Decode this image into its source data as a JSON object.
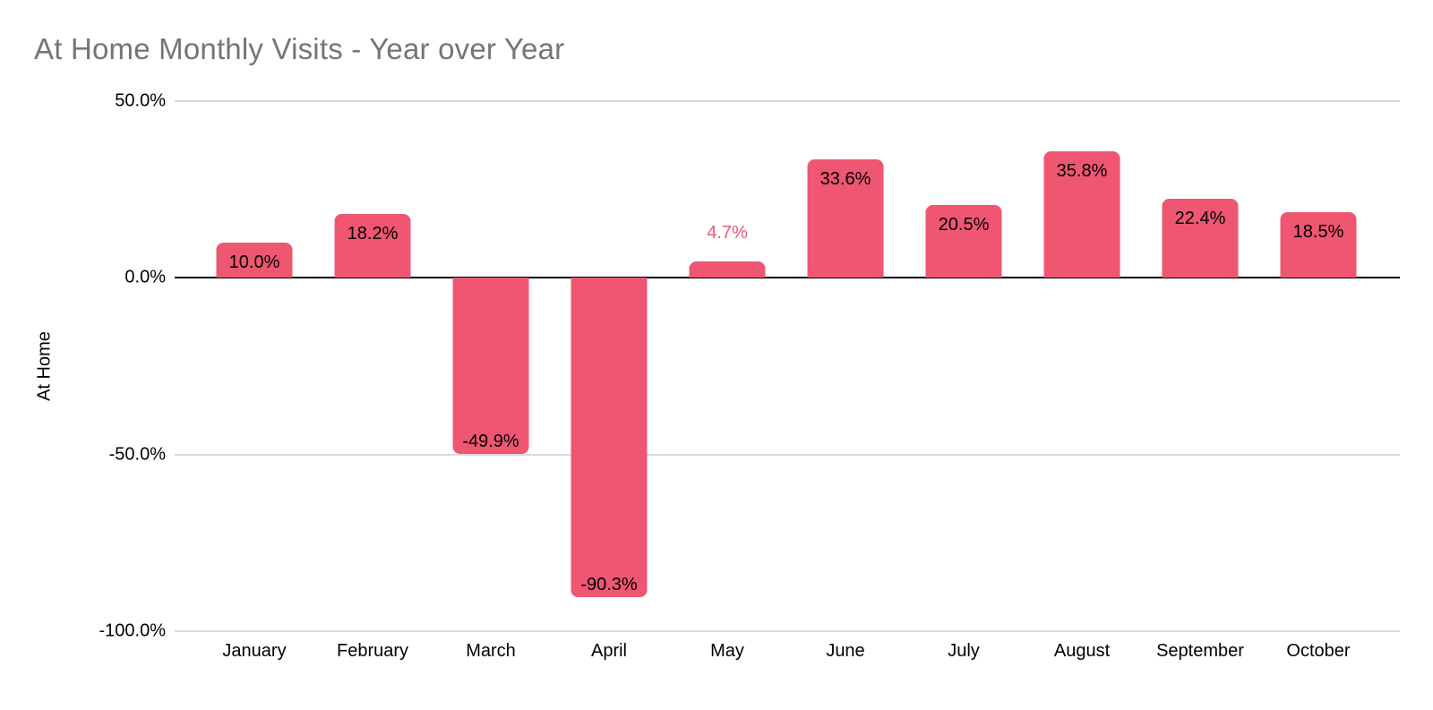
{
  "title": "At Home Monthly Visits - Year over Year",
  "colors": {
    "bar": "#EE5672",
    "title_text": "#757575",
    "gridline": "#d9d9d9",
    "zero_axis": "#000000",
    "inside_label": "#000000",
    "outside_label": "#EE5672"
  },
  "chart_data": {
    "type": "bar",
    "title": "At Home Monthly Visits - Year over Year",
    "xlabel": "",
    "ylabel": "At Home",
    "categories": [
      "January",
      "February",
      "March",
      "April",
      "May",
      "June",
      "July",
      "August",
      "September",
      "October"
    ],
    "values": [
      10.0,
      18.2,
      -49.9,
      -90.3,
      4.7,
      33.6,
      20.5,
      35.8,
      22.4,
      18.5
    ],
    "value_labels": [
      "10.0%",
      "18.2%",
      "-49.9%",
      "-90.3%",
      "4.7%",
      "33.6%",
      "20.5%",
      "35.8%",
      "22.4%",
      "18.5%"
    ],
    "ylim": [
      -100,
      50
    ],
    "yticks": [
      50,
      0,
      -50,
      -100
    ],
    "ytick_labels": [
      "50.0%",
      "0.0%",
      "-50.0%",
      "-100.0%"
    ],
    "grid": true,
    "legend_position": "none",
    "bar_color": "#EE5672",
    "annotations": "May label shown outside bar in series color; all other labels inside bars in black"
  }
}
